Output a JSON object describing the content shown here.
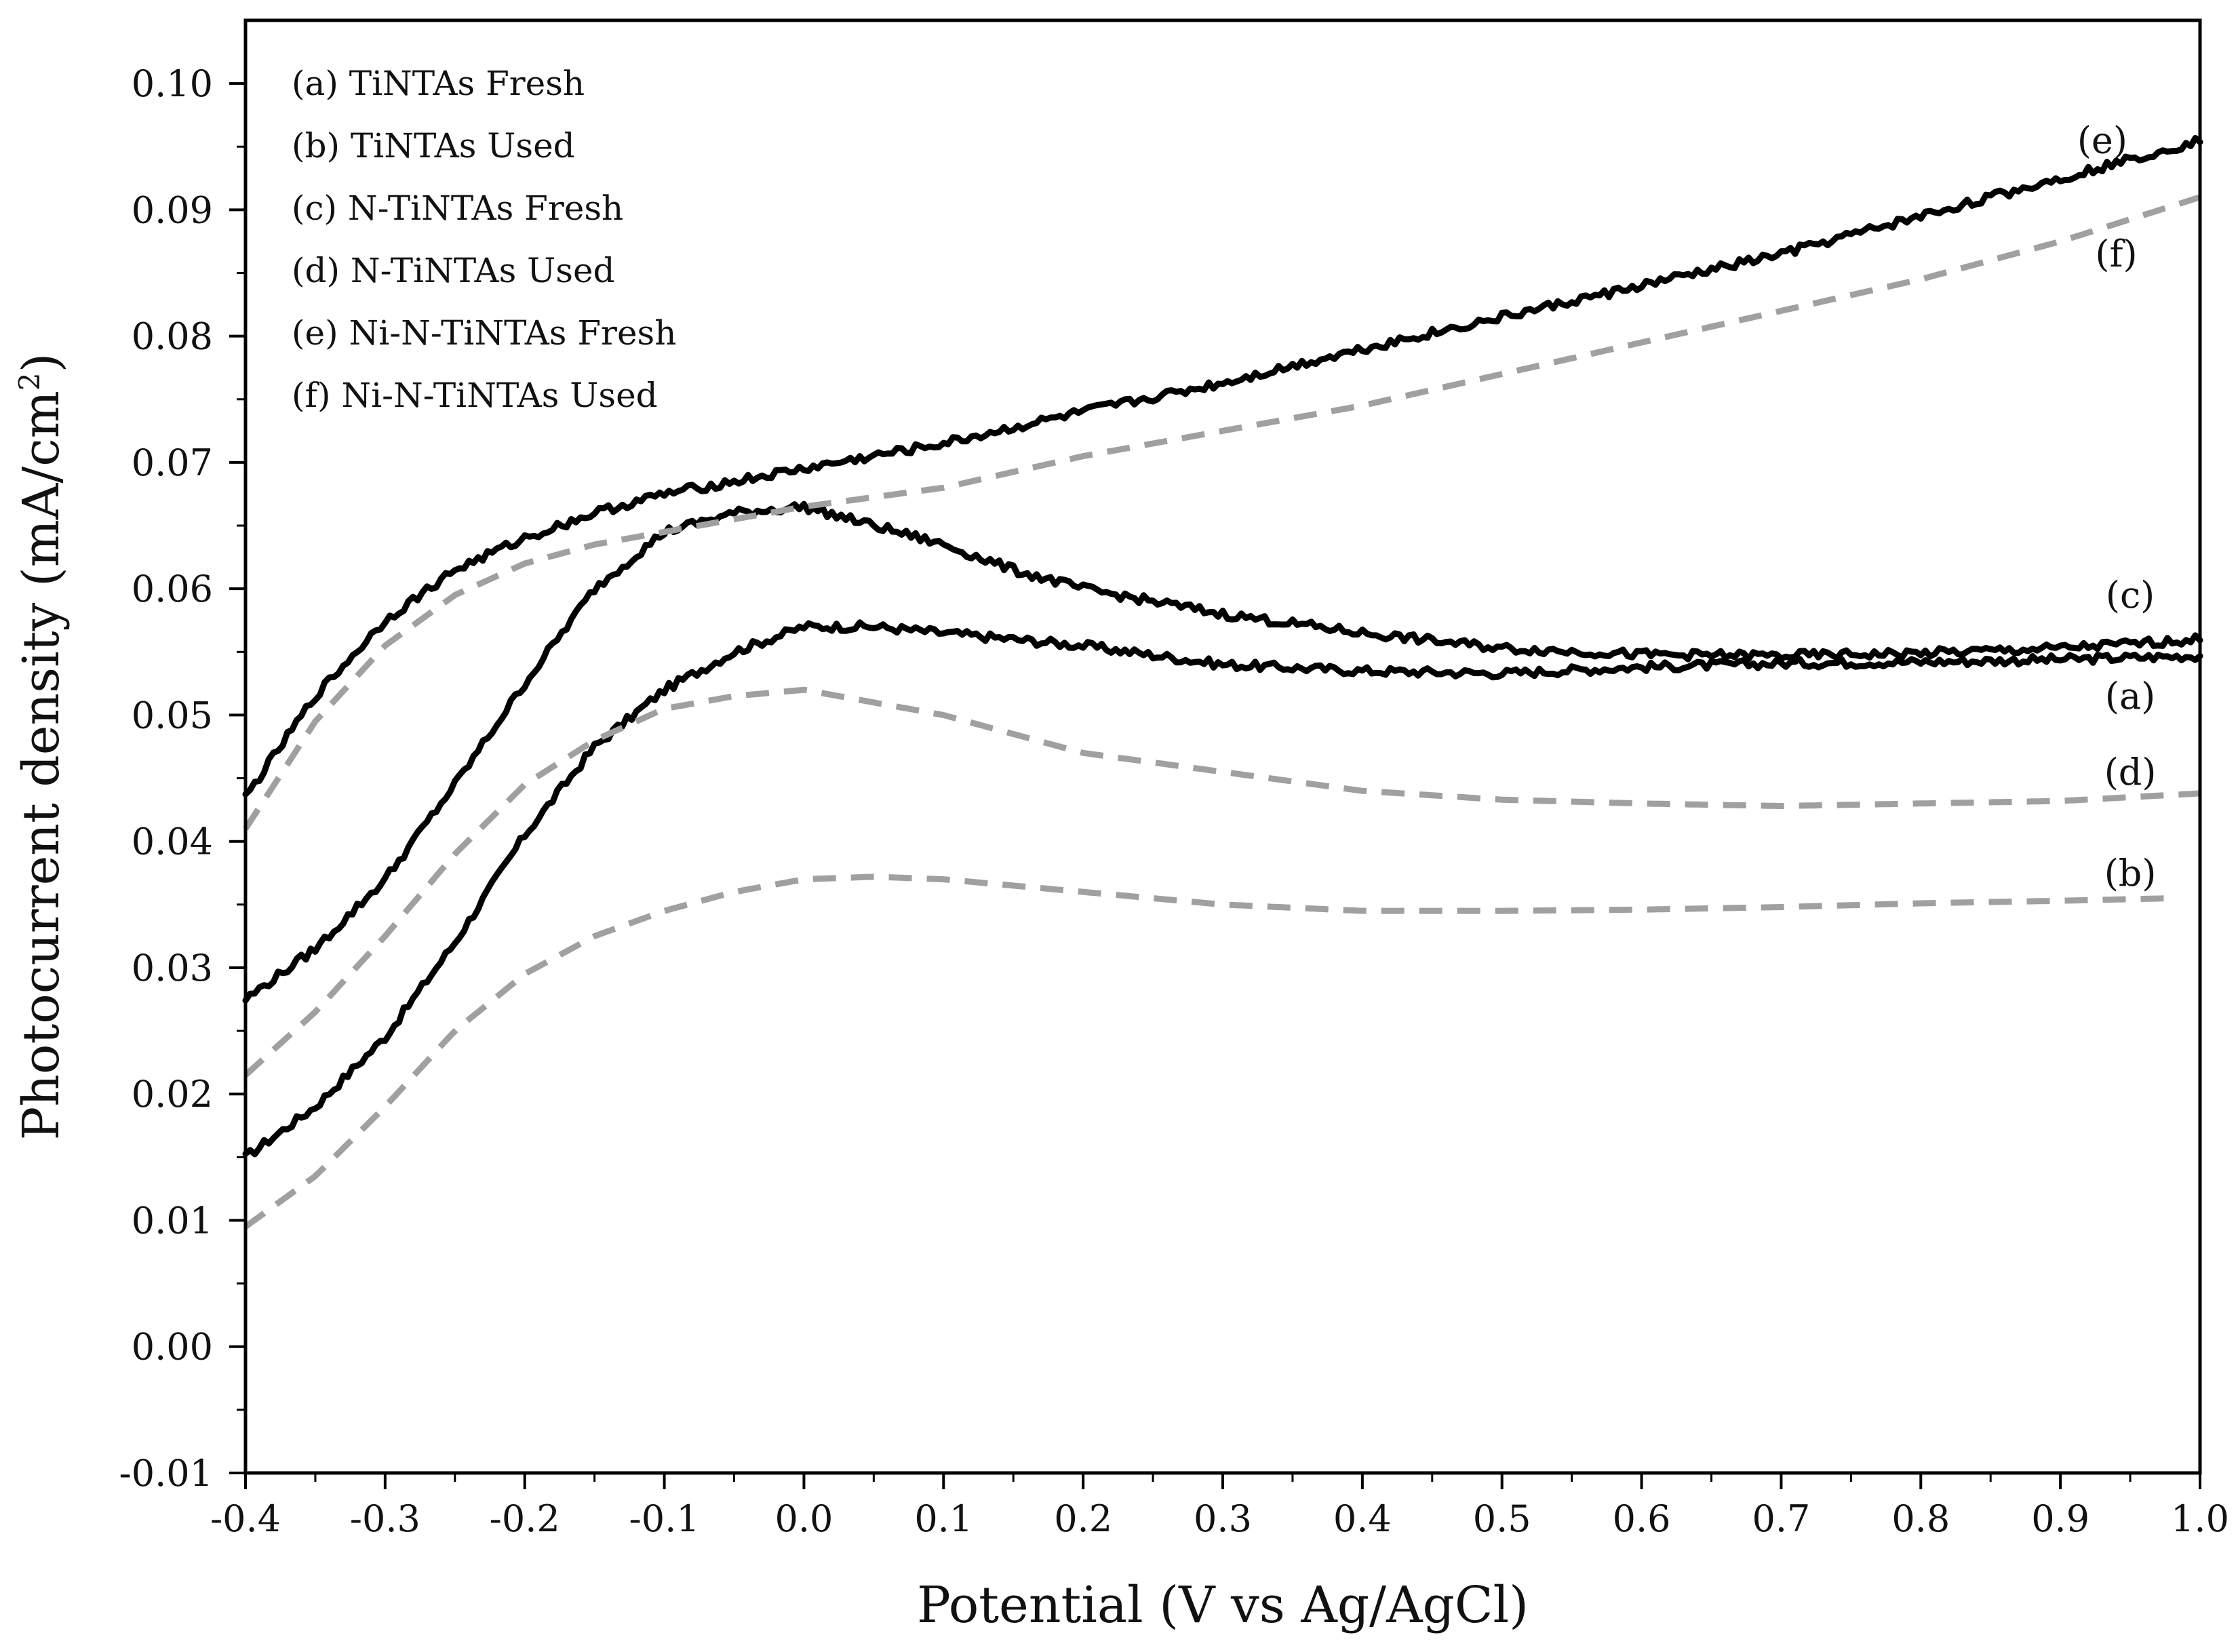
{
  "chart_data": {
    "type": "line",
    "title": "",
    "xlabel": "Potential (V vs Ag/AgCl)",
    "ylabel": "Photocurrent density (mA/cm",
    "ylabel_superscript": "2",
    "ylabel_close": ")",
    "xlim": [
      -0.4,
      1.0
    ],
    "ylim": [
      -0.01,
      0.105
    ],
    "x_ticks": [
      -0.4,
      -0.3,
      -0.2,
      -0.1,
      0.0,
      0.1,
      0.2,
      0.3,
      0.4,
      0.5,
      0.6,
      0.7,
      0.8,
      0.9,
      1.0
    ],
    "x_tick_labels": [
      "-0.4",
      "-0.3",
      "-0.2",
      "-0.1",
      "0.0",
      "0.1",
      "0.2",
      "0.3",
      "0.4",
      "0.5",
      "0.6",
      "0.7",
      "0.8",
      "0.9",
      "1.0"
    ],
    "y_ticks": [
      -0.01,
      0.0,
      0.01,
      0.02,
      0.03,
      0.04,
      0.05,
      0.06,
      0.07,
      0.08,
      0.09,
      0.1
    ],
    "y_tick_labels": [
      "-0.01",
      "0.00",
      "0.01",
      "0.02",
      "0.03",
      "0.04",
      "0.05",
      "0.06",
      "0.07",
      "0.08",
      "0.09",
      "0.10"
    ],
    "legend": {
      "position": "top-left",
      "entries": [
        "(a) TiNTAs Fresh",
        "(b) TiNTAs Used",
        "(c) N-TiNTAs Fresh",
        "(d) N-TiNTAs Used",
        "(e) Ni-N-TiNTAs Fresh",
        "(f)  Ni-N-TiNTAs Used"
      ]
    },
    "series": [
      {
        "name": "(a) TiNTAs Fresh",
        "label": "(a)",
        "style": "solid",
        "color": "#000000",
        "label_at": [
          0.95,
          0.0505
        ],
        "x": [
          -0.4,
          -0.35,
          -0.3,
          -0.25,
          -0.2,
          -0.15,
          -0.1,
          -0.05,
          0.0,
          0.05,
          0.1,
          0.15,
          0.2,
          0.3,
          0.4,
          0.5,
          0.6,
          0.7,
          0.8,
          0.9,
          1.0
        ],
        "values": [
          0.015,
          0.019,
          0.0245,
          0.032,
          0.0405,
          0.0475,
          0.052,
          0.055,
          0.057,
          0.057,
          0.0565,
          0.056,
          0.0555,
          0.054,
          0.0535,
          0.0533,
          0.0538,
          0.0541,
          0.0542,
          0.0544,
          0.0547
        ]
      },
      {
        "name": "(b) TiNTAs Used",
        "label": "(b)",
        "style": "dashed",
        "color": "#a0a0a0",
        "label_at": [
          0.95,
          0.0365
        ],
        "x": [
          -0.4,
          -0.35,
          -0.3,
          -0.25,
          -0.2,
          -0.15,
          -0.1,
          -0.05,
          0.0,
          0.05,
          0.1,
          0.2,
          0.3,
          0.4,
          0.5,
          0.6,
          0.7,
          0.8,
          0.9,
          0.98
        ],
        "values": [
          0.0095,
          0.0135,
          0.019,
          0.025,
          0.0295,
          0.0325,
          0.0345,
          0.036,
          0.037,
          0.0372,
          0.037,
          0.036,
          0.035,
          0.0345,
          0.0345,
          0.0346,
          0.0348,
          0.0351,
          0.0353,
          0.0355
        ]
      },
      {
        "name": "(c) N-TiNTAs Fresh",
        "label": "(c)",
        "style": "solid",
        "color": "#000000",
        "label_at": [
          0.95,
          0.0585
        ],
        "x": [
          -0.4,
          -0.35,
          -0.3,
          -0.25,
          -0.2,
          -0.15,
          -0.1,
          -0.05,
          0.0,
          0.05,
          0.1,
          0.15,
          0.2,
          0.3,
          0.4,
          0.5,
          0.6,
          0.7,
          0.8,
          0.9,
          1.0
        ],
        "values": [
          0.0275,
          0.0315,
          0.037,
          0.0445,
          0.0525,
          0.06,
          0.0645,
          0.066,
          0.0665,
          0.065,
          0.0635,
          0.0615,
          0.06,
          0.058,
          0.0565,
          0.0553,
          0.0548,
          0.0547,
          0.0549,
          0.0553,
          0.056
        ]
      },
      {
        "name": "(d) N-TiNTAs Used",
        "label": "(d)",
        "style": "dashed",
        "color": "#a0a0a0",
        "label_at": [
          0.95,
          0.0445
        ],
        "x": [
          -0.4,
          -0.35,
          -0.3,
          -0.25,
          -0.2,
          -0.15,
          -0.1,
          -0.05,
          0.0,
          0.05,
          0.1,
          0.15,
          0.2,
          0.3,
          0.4,
          0.5,
          0.6,
          0.7,
          0.8,
          0.9,
          1.0
        ],
        "values": [
          0.0215,
          0.0265,
          0.0325,
          0.039,
          0.0445,
          0.048,
          0.0505,
          0.0515,
          0.052,
          0.051,
          0.05,
          0.0485,
          0.047,
          0.0455,
          0.044,
          0.0433,
          0.043,
          0.0428,
          0.043,
          0.0432,
          0.0438
        ]
      },
      {
        "name": "(e) Ni-N-TiNTAs Fresh",
        "label": "(e)",
        "style": "solid",
        "color": "#000000",
        "label_at": [
          0.93,
          0.0945
        ],
        "x": [
          -0.4,
          -0.35,
          -0.3,
          -0.25,
          -0.2,
          -0.15,
          -0.1,
          -0.05,
          0.0,
          0.1,
          0.2,
          0.3,
          0.4,
          0.5,
          0.6,
          0.7,
          0.8,
          0.9,
          1.0
        ],
        "values": [
          0.0435,
          0.0515,
          0.0575,
          0.0615,
          0.064,
          0.066,
          0.0675,
          0.0685,
          0.0695,
          0.0715,
          0.074,
          0.0763,
          0.079,
          0.0815,
          0.084,
          0.0865,
          0.0895,
          0.0925,
          0.0955
        ]
      },
      {
        "name": "(f) Ni-N-TiNTAs Used",
        "label": "(f)",
        "style": "dashed",
        "color": "#a0a0a0",
        "label_at": [
          0.94,
          0.0855
        ],
        "x": [
          -0.4,
          -0.35,
          -0.3,
          -0.25,
          -0.2,
          -0.15,
          -0.1,
          -0.05,
          0.0,
          0.1,
          0.2,
          0.3,
          0.4,
          0.5,
          0.6,
          0.7,
          0.8,
          0.9,
          1.0
        ],
        "values": [
          0.041,
          0.0495,
          0.0555,
          0.0595,
          0.062,
          0.0635,
          0.0645,
          0.0655,
          0.0665,
          0.068,
          0.0705,
          0.0725,
          0.0745,
          0.077,
          0.0795,
          0.082,
          0.0845,
          0.0875,
          0.091
        ]
      }
    ]
  }
}
